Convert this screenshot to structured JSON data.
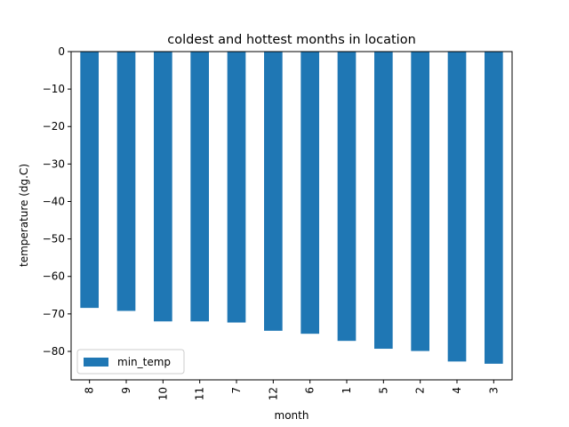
{
  "chart_data": {
    "type": "bar",
    "title": "coldest and hottest months in location",
    "xlabel": "month",
    "ylabel": "temperature (dg.C)",
    "categories": [
      "8",
      "9",
      "10",
      "11",
      "7",
      "12",
      "6",
      "1",
      "5",
      "2",
      "4",
      "3"
    ],
    "series": [
      {
        "name": "min_temp",
        "color": "#1f77b4",
        "values": [
          -68.4,
          -69.2,
          -72.0,
          -72.0,
          -72.3,
          -74.5,
          -75.3,
          -77.2,
          -79.3,
          -79.9,
          -82.7,
          -83.3
        ]
      }
    ],
    "ylim": [
      -87.6,
      0
    ],
    "yticks": [
      0,
      -10,
      -20,
      -30,
      -40,
      -50,
      -60,
      -70,
      -80
    ],
    "ytick_labels": [
      "0",
      "−10",
      "−20",
      "−30",
      "−40",
      "−50",
      "−60",
      "−70",
      "−80"
    ],
    "legend": {
      "location": "lower-left",
      "label": "min_temp"
    },
    "grid": false
  }
}
